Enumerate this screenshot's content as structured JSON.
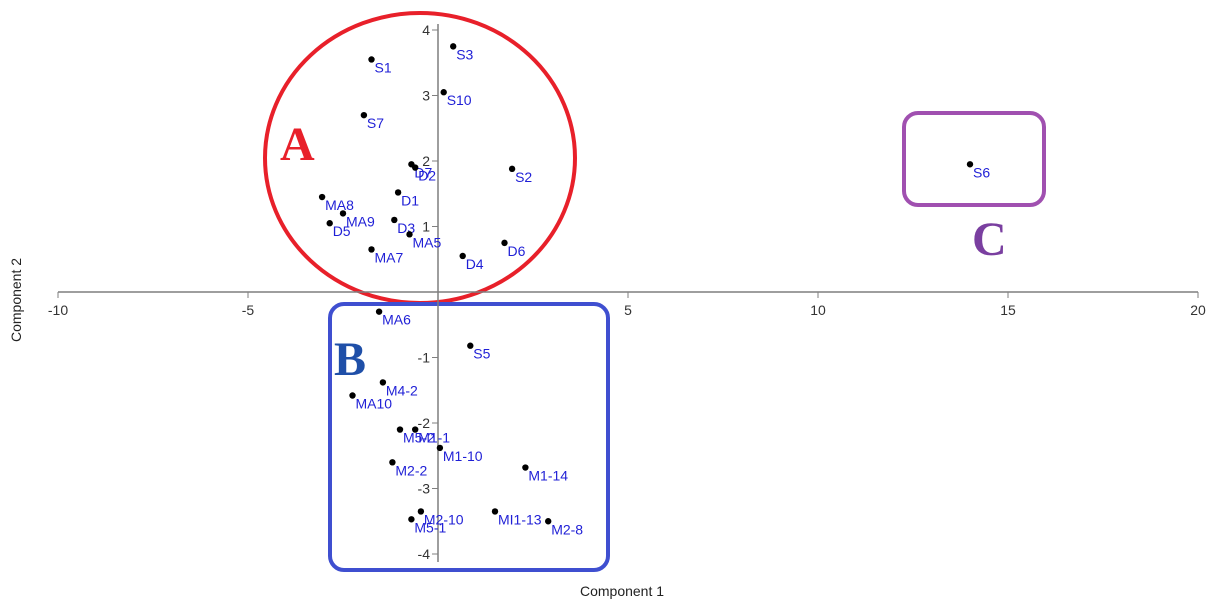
{
  "chart_data": {
    "type": "scatter",
    "xlabel": "Component 1",
    "ylabel": "Component 2",
    "xlim": [
      -10,
      20
    ],
    "ylim": [
      -4.3,
      4.1
    ],
    "x_ticks": [
      -10,
      -5,
      5,
      10,
      15,
      20
    ],
    "y_ticks": [
      -4,
      -3,
      -2,
      -1,
      1,
      2,
      3,
      4
    ],
    "grid": false,
    "points": [
      {
        "label": "S1",
        "x": -1.75,
        "y": 3.55
      },
      {
        "label": "S3",
        "x": 0.4,
        "y": 3.75
      },
      {
        "label": "S10",
        "x": 0.15,
        "y": 3.05
      },
      {
        "label": "S7",
        "x": -1.95,
        "y": 2.7
      },
      {
        "label": "D7",
        "x": -0.7,
        "y": 1.95
      },
      {
        "label": "D2",
        "x": -0.6,
        "y": 1.9
      },
      {
        "label": "S2",
        "x": 1.95,
        "y": 1.88
      },
      {
        "label": "MA8",
        "x": -3.05,
        "y": 1.45
      },
      {
        "label": "D1",
        "x": -1.05,
        "y": 1.52
      },
      {
        "label": "MA9",
        "x": -2.5,
        "y": 1.2
      },
      {
        "label": "D5",
        "x": -2.85,
        "y": 1.05
      },
      {
        "label": "D3",
        "x": -1.15,
        "y": 1.1
      },
      {
        "label": "MA5",
        "x": -0.75,
        "y": 0.88
      },
      {
        "label": "D6",
        "x": 1.75,
        "y": 0.75
      },
      {
        "label": "MA7",
        "x": -1.75,
        "y": 0.65
      },
      {
        "label": "D4",
        "x": 0.65,
        "y": 0.55
      },
      {
        "label": "S6",
        "x": 14.0,
        "y": 1.95
      },
      {
        "label": "MA6",
        "x": -1.55,
        "y": -0.3
      },
      {
        "label": "S5",
        "x": 0.85,
        "y": -0.82
      },
      {
        "label": "M4-2",
        "x": -1.45,
        "y": -1.38
      },
      {
        "label": "MA10",
        "x": -2.25,
        "y": -1.58
      },
      {
        "label": "M1-1",
        "x": -0.6,
        "y": -2.1
      },
      {
        "label": "M5-2",
        "x": -1.0,
        "y": -2.1
      },
      {
        "label": "M1-10",
        "x": 0.05,
        "y": -2.38
      },
      {
        "label": "M2-2",
        "x": -1.2,
        "y": -2.6
      },
      {
        "label": "M1-14",
        "x": 2.3,
        "y": -2.68
      },
      {
        "label": "MI1-13",
        "x": 1.5,
        "y": -3.35
      },
      {
        "label": "M2-10",
        "x": -0.45,
        "y": -3.35
      },
      {
        "label": "M5-1",
        "x": -0.7,
        "y": -3.47
      },
      {
        "label": "M2-8",
        "x": 2.9,
        "y": -3.5
      }
    ],
    "groups": [
      {
        "label": "A",
        "color": "#e8202a"
      },
      {
        "label": "B",
        "color": "#1f4fa8",
        "frame_color": "#3f4fd0"
      },
      {
        "label": "C",
        "color": "#7a3fa0",
        "frame_color": "#a050b0"
      }
    ]
  }
}
